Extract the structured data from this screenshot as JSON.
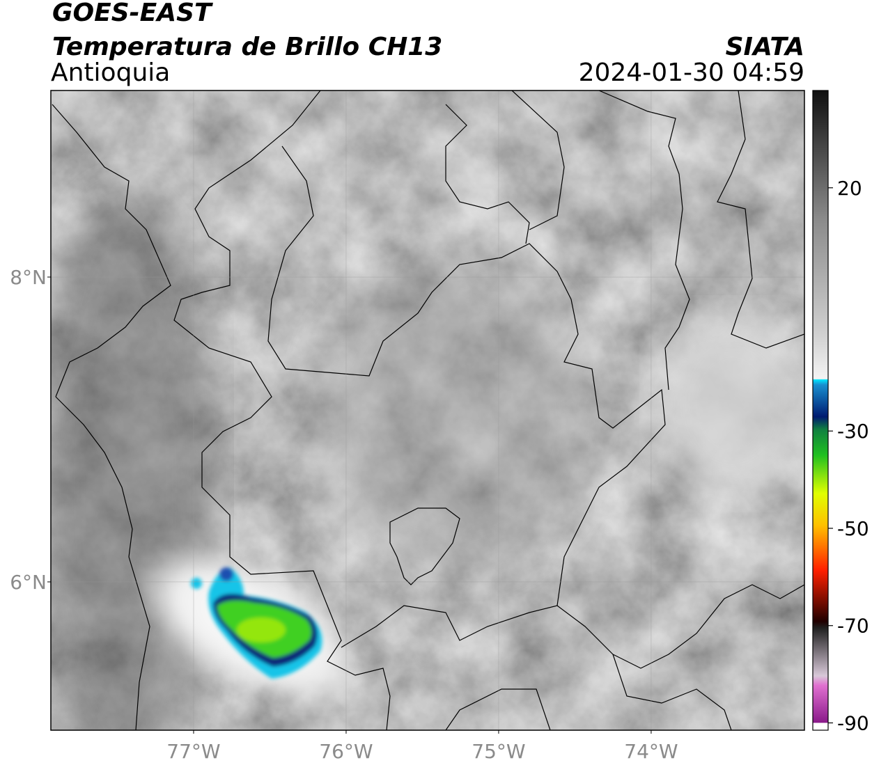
{
  "header": {
    "title": "GOES-EAST",
    "subtitle": "Temperatura de Brillo CH13",
    "region": "Antioquia",
    "source": "SIATA",
    "datetime": "2024-01-30 04:59"
  },
  "map": {
    "xlim": [
      -77.936,
      -72.995
    ],
    "ylim": [
      5.027,
      9.224
    ],
    "xticks": [
      {
        "value": -77,
        "label": "77°W"
      },
      {
        "value": -76,
        "label": "76°W"
      },
      {
        "value": -75,
        "label": "75°W"
      },
      {
        "value": -74,
        "label": "74°W"
      }
    ],
    "yticks": [
      {
        "value": 8,
        "label": "8°N"
      },
      {
        "value": 6,
        "label": "6°N"
      }
    ],
    "grid": true
  },
  "colorbar": {
    "lim": [
      -91.5,
      40
    ],
    "ticks": [
      20,
      -30,
      -50,
      -70,
      -90
    ]
  }
}
